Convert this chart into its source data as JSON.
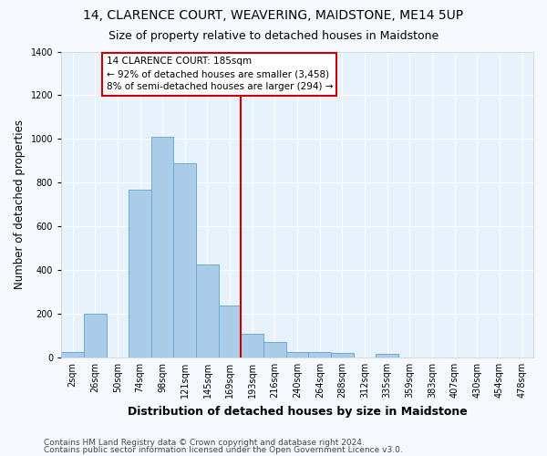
{
  "title": "14, CLARENCE COURT, WEAVERING, MAIDSTONE, ME14 5UP",
  "subtitle": "Size of property relative to detached houses in Maidstone",
  "xlabel": "Distribution of detached houses by size in Maidstone",
  "ylabel": "Number of detached properties",
  "categories": [
    "2sqm",
    "26sqm",
    "50sqm",
    "74sqm",
    "98sqm",
    "121sqm",
    "145sqm",
    "169sqm",
    "193sqm",
    "216sqm",
    "240sqm",
    "264sqm",
    "288sqm",
    "312sqm",
    "335sqm",
    "359sqm",
    "383sqm",
    "407sqm",
    "430sqm",
    "454sqm",
    "478sqm"
  ],
  "values": [
    25,
    200,
    0,
    770,
    1010,
    890,
    425,
    240,
    110,
    70,
    25,
    25,
    20,
    0,
    15,
    0,
    0,
    0,
    0,
    0,
    0
  ],
  "bar_color": "#aacce8",
  "bar_edge_color": "#6aaad4",
  "vline_color": "#cc0000",
  "vline_index": 8,
  "annotation_text": "14 CLARENCE COURT: 185sqm\n← 92% of detached houses are smaller (3,458)\n8% of semi-detached houses are larger (294) →",
  "annotation_box_color": "#ffffff",
  "annotation_box_edge": "#cc0000",
  "ylim": [
    0,
    1400
  ],
  "yticks": [
    0,
    200,
    400,
    600,
    800,
    1000,
    1200,
    1400
  ],
  "footer1": "Contains HM Land Registry data © Crown copyright and database right 2024.",
  "footer2": "Contains public sector information licensed under the Open Government Licence v3.0.",
  "bg_color": "#e8f2fc",
  "grid_color": "#ffffff",
  "title_fontsize": 10,
  "subtitle_fontsize": 9,
  "tick_fontsize": 7,
  "ylabel_fontsize": 8.5,
  "xlabel_fontsize": 9,
  "footer_fontsize": 6.5
}
